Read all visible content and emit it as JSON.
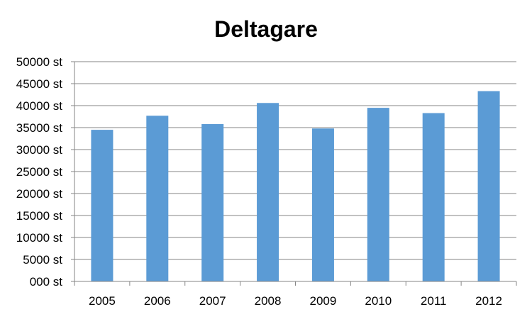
{
  "chart_data": {
    "type": "bar",
    "title": "Deltagare",
    "xlabel": "",
    "ylabel": "",
    "categories": [
      "2005",
      "2006",
      "2007",
      "2008",
      "2009",
      "2010",
      "2011",
      "2012"
    ],
    "series": [
      {
        "values": [
          34500,
          37700,
          35800,
          40600,
          34800,
          39500,
          38300,
          43300
        ]
      }
    ],
    "ylim": [
      0,
      50000
    ],
    "ytick_values": [
      0,
      5000,
      10000,
      15000,
      20000,
      25000,
      30000,
      35000,
      40000,
      45000,
      50000
    ],
    "ytick_labels": [
      "000 st",
      "5000 st",
      "10000 st",
      "15000 st",
      "20000 st",
      "25000 st",
      "30000 st",
      "35000 st",
      "40000 st",
      "45000 st",
      "50000 st"
    ],
    "grid": true,
    "legend": "none",
    "colors": {
      "bar": "#5B9BD5",
      "grid": "#868686",
      "axis": "#868686"
    }
  }
}
